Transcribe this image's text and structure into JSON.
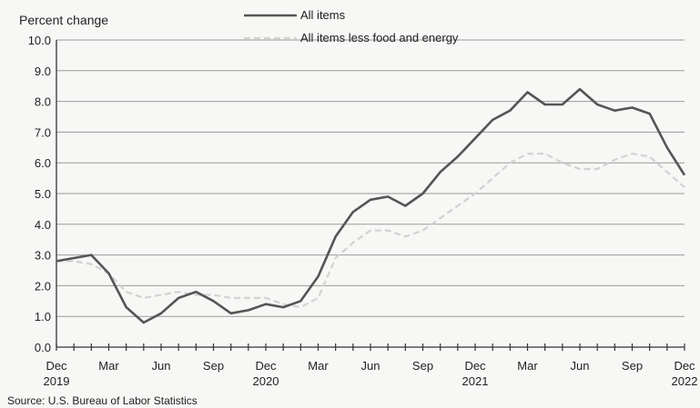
{
  "chart_data": {
    "type": "line",
    "ylabel": "Percent change",
    "ylim": [
      0,
      10
    ],
    "yticks": [
      "0.0",
      "1.0",
      "2.0",
      "3.0",
      "4.0",
      "5.0",
      "6.0",
      "7.0",
      "8.0",
      "9.0",
      "10.0"
    ],
    "grid": true,
    "legend_position": "top-center",
    "x": [
      "2019-12",
      "2020-01",
      "2020-02",
      "2020-03",
      "2020-04",
      "2020-05",
      "2020-06",
      "2020-07",
      "2020-08",
      "2020-09",
      "2020-10",
      "2020-11",
      "2020-12",
      "2021-01",
      "2021-02",
      "2021-03",
      "2021-04",
      "2021-05",
      "2021-06",
      "2021-07",
      "2021-08",
      "2021-09",
      "2021-10",
      "2021-11",
      "2021-12",
      "2022-01",
      "2022-02",
      "2022-03",
      "2022-04",
      "2022-05",
      "2022-06",
      "2022-07",
      "2022-08",
      "2022-09",
      "2022-10",
      "2022-11",
      "2022-12"
    ],
    "xtick_labels": [
      {
        "month": "Dec",
        "year": "2019",
        "index": 0
      },
      {
        "month": "Mar",
        "year": "",
        "index": 3
      },
      {
        "month": "Jun",
        "year": "",
        "index": 6
      },
      {
        "month": "Sep",
        "year": "",
        "index": 9
      },
      {
        "month": "Dec",
        "year": "2020",
        "index": 12
      },
      {
        "month": "Mar",
        "year": "",
        "index": 15
      },
      {
        "month": "Jun",
        "year": "",
        "index": 18
      },
      {
        "month": "Sep",
        "year": "",
        "index": 21
      },
      {
        "month": "Dec",
        "year": "2021",
        "index": 24
      },
      {
        "month": "Mar",
        "year": "",
        "index": 27
      },
      {
        "month": "Jun",
        "year": "",
        "index": 30
      },
      {
        "month": "Sep",
        "year": "",
        "index": 33
      },
      {
        "month": "Dec",
        "year": "2022",
        "index": 36
      }
    ],
    "series": [
      {
        "name": "All items",
        "color": "#555555",
        "style": "solid",
        "values": [
          2.8,
          2.9,
          3.0,
          2.4,
          1.3,
          0.8,
          1.1,
          1.6,
          1.8,
          1.5,
          1.1,
          1.2,
          1.4,
          1.3,
          1.5,
          2.3,
          3.6,
          4.4,
          4.8,
          4.9,
          4.6,
          5.0,
          5.7,
          6.2,
          6.8,
          7.4,
          7.7,
          8.3,
          7.9,
          7.9,
          8.4,
          7.9,
          7.7,
          7.8,
          7.6,
          6.5,
          5.6
        ]
      },
      {
        "name": "All items less food and energy",
        "color": "#d2d2d2",
        "style": "dashed",
        "values": [
          2.8,
          2.8,
          2.7,
          2.4,
          1.8,
          1.6,
          1.7,
          1.8,
          1.7,
          1.7,
          1.6,
          1.6,
          1.6,
          1.4,
          1.3,
          1.6,
          2.9,
          3.4,
          3.8,
          3.8,
          3.6,
          3.8,
          4.2,
          4.6,
          5.0,
          5.5,
          6.0,
          6.3,
          6.3,
          6.0,
          5.8,
          5.8,
          6.1,
          6.3,
          6.2,
          5.7,
          5.2
        ]
      }
    ]
  },
  "source": "Source: U.S. Bureau of Labor Statistics"
}
